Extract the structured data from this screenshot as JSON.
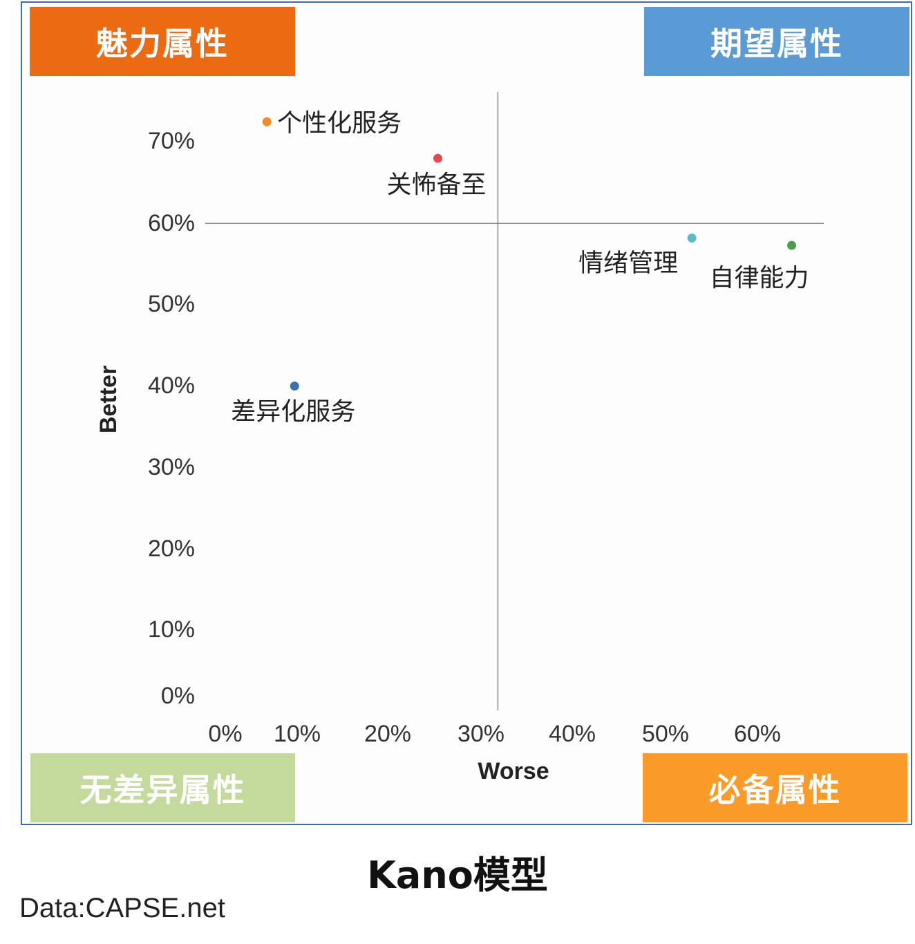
{
  "quadrants": {
    "attractive": {
      "label": "魅力属性",
      "color": "#ec6a12"
    },
    "performance": {
      "label": "期望属性",
      "color": "#5b9bd5"
    },
    "indifferent": {
      "label": "无差异属性",
      "color": "#c4d99c"
    },
    "must_be": {
      "label": "必备属性",
      "color": "#fa9a29"
    }
  },
  "chart_data": {
    "type": "scatter",
    "xlabel": "Worse",
    "ylabel": "Better",
    "xlim": [
      0,
      0.65
    ],
    "ylim": [
      0,
      0.7
    ],
    "x_ticks": [
      "0%",
      "10%",
      "20%",
      "30%",
      "40%",
      "50%",
      "60%"
    ],
    "y_ticks": [
      "0%",
      "10%",
      "20%",
      "30%",
      "40%",
      "50%",
      "60%",
      "70%"
    ],
    "x_divider": 0.295,
    "y_divider": 0.58,
    "grid": false,
    "points": [
      {
        "label": "个性化服务",
        "x": 0.045,
        "y": 0.705,
        "color": "#f28c28"
      },
      {
        "label": "关怖备至",
        "x": 0.23,
        "y": 0.66,
        "color": "#e8474f"
      },
      {
        "label": "情绪管理",
        "x": 0.505,
        "y": 0.562,
        "color": "#5bbcc7"
      },
      {
        "label": "自律能力",
        "x": 0.613,
        "y": 0.553,
        "color": "#4aa04a"
      },
      {
        "label": "差异化服务",
        "x": 0.075,
        "y": 0.38,
        "color": "#3c6fb6"
      }
    ]
  },
  "title": "Kano模型",
  "source": "Data:CAPSE.net"
}
